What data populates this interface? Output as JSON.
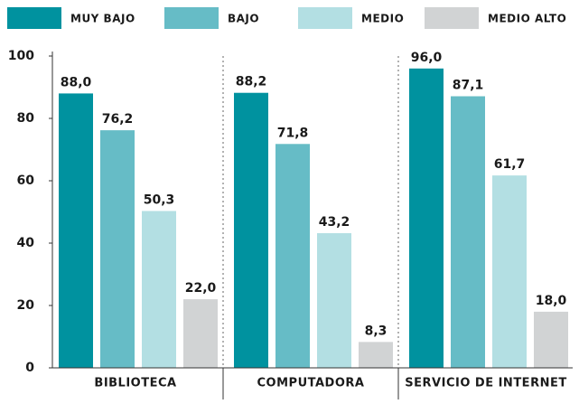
{
  "chart_data": {
    "type": "bar",
    "categories": [
      "BIBLIOTECA",
      "COMPUTADORA",
      "SERVICIO DE INTERNET"
    ],
    "series": [
      {
        "name": "MUY BAJO",
        "color": "#00929f",
        "values": [
          88.0,
          88.2,
          96.0
        ],
        "value_labels": [
          "88,0",
          "88,2",
          "96,0"
        ]
      },
      {
        "name": "BAJO",
        "color": "#66bcc6",
        "values": [
          76.2,
          71.8,
          87.1
        ],
        "value_labels": [
          "76,2",
          "71,8",
          "87,1"
        ]
      },
      {
        "name": "MEDIO",
        "color": "#b3dfe3",
        "values": [
          50.3,
          43.2,
          61.7
        ],
        "value_labels": [
          "50,3",
          "43,2",
          "61,7"
        ]
      },
      {
        "name": "MEDIO ALTO",
        "color": "#d1d3d4",
        "values": [
          22.0,
          8.3,
          18.0
        ],
        "value_labels": [
          "22,0",
          "8,3",
          "18,0"
        ]
      }
    ],
    "ylim": [
      0,
      100
    ],
    "yticks": [
      0,
      20,
      40,
      60,
      80,
      100
    ],
    "legend": "top"
  }
}
